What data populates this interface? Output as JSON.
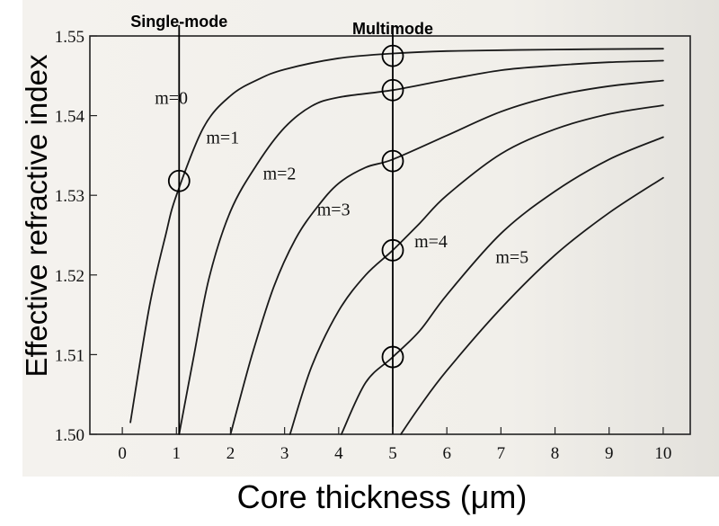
{
  "chart_data": {
    "type": "line",
    "xlabel": "Core thickness (μm)",
    "ylabel": "Effective refractive index",
    "xlim": [
      -0.6,
      10.5
    ],
    "ylim": [
      1.5,
      1.55
    ],
    "x_ticks": [
      "0",
      "1",
      "2",
      "3",
      "4",
      "5",
      "6",
      "7",
      "8",
      "9",
      "10"
    ],
    "y_ticks": [
      "1.50",
      "1.51",
      "1.52",
      "1.53",
      "1.54",
      "1.55"
    ],
    "grid": false,
    "series": [
      {
        "name": "m=0",
        "points": [
          [
            0.15,
            1.5015
          ],
          [
            0.5,
            1.516
          ],
          [
            0.8,
            1.525
          ],
          [
            1.0,
            1.53
          ],
          [
            1.5,
            1.5385
          ],
          [
            2.0,
            1.5425
          ],
          [
            2.5,
            1.5445
          ],
          [
            3.0,
            1.5458
          ],
          [
            4.0,
            1.5472
          ],
          [
            5.0,
            1.5478
          ],
          [
            6.0,
            1.5481
          ],
          [
            8.0,
            1.5483
          ],
          [
            10.0,
            1.5484
          ]
        ]
      },
      {
        "name": "m=1",
        "points": [
          [
            1.05,
            1.5
          ],
          [
            1.3,
            1.509
          ],
          [
            1.6,
            1.5195
          ],
          [
            2.0,
            1.528
          ],
          [
            2.5,
            1.534
          ],
          [
            3.0,
            1.5385
          ],
          [
            3.5,
            1.5412
          ],
          [
            4.0,
            1.5423
          ],
          [
            5.0,
            1.5432
          ],
          [
            6.0,
            1.5445
          ],
          [
            7.0,
            1.5457
          ],
          [
            8.0,
            1.5463
          ],
          [
            9.0,
            1.5467
          ],
          [
            10.0,
            1.5469
          ]
        ]
      },
      {
        "name": "m=2",
        "points": [
          [
            2.0,
            1.5
          ],
          [
            2.4,
            1.51
          ],
          [
            2.8,
            1.5185
          ],
          [
            3.2,
            1.5245
          ],
          [
            3.6,
            1.5285
          ],
          [
            4.0,
            1.5315
          ],
          [
            4.5,
            1.5335
          ],
          [
            5.0,
            1.5345
          ],
          [
            6.0,
            1.5375
          ],
          [
            7.0,
            1.5405
          ],
          [
            8.0,
            1.5425
          ],
          [
            9.0,
            1.5437
          ],
          [
            10.0,
            1.5444
          ]
        ]
      },
      {
        "name": "m=3",
        "points": [
          [
            3.1,
            1.5
          ],
          [
            3.5,
            1.5085
          ],
          [
            4.0,
            1.5155
          ],
          [
            4.5,
            1.52
          ],
          [
            5.0,
            1.5231
          ],
          [
            5.5,
            1.5265
          ],
          [
            6.0,
            1.53
          ],
          [
            7.0,
            1.5352
          ],
          [
            8.0,
            1.5383
          ],
          [
            9.0,
            1.5402
          ],
          [
            10.0,
            1.5413
          ]
        ]
      },
      {
        "name": "m=4",
        "points": [
          [
            4.05,
            1.5
          ],
          [
            4.5,
            1.5065
          ],
          [
            5.0,
            1.5097
          ],
          [
            5.5,
            1.513
          ],
          [
            6.0,
            1.5175
          ],
          [
            7.0,
            1.5252
          ],
          [
            8.0,
            1.5305
          ],
          [
            9.0,
            1.5345
          ],
          [
            10.0,
            1.5373
          ]
        ]
      },
      {
        "name": "m=5",
        "points": [
          [
            5.15,
            1.5
          ],
          [
            5.5,
            1.5035
          ],
          [
            6.0,
            1.508
          ],
          [
            7.0,
            1.5158
          ],
          [
            8.0,
            1.5225
          ],
          [
            9.0,
            1.5278
          ],
          [
            10.0,
            1.5322
          ]
        ]
      }
    ],
    "curve_labels": [
      {
        "text": "m=0",
        "x": 0.6,
        "y": 1.5415
      },
      {
        "text": "m=1",
        "x": 1.55,
        "y": 1.5365
      },
      {
        "text": "m=2",
        "x": 2.6,
        "y": 1.532
      },
      {
        "text": "m=3",
        "x": 3.6,
        "y": 1.5275
      },
      {
        "text": "m=4",
        "x": 5.4,
        "y": 1.5235
      },
      {
        "text": "m=5",
        "x": 6.9,
        "y": 1.5215
      }
    ],
    "vertical_lines": [
      {
        "x": 1.05,
        "label": "Single-mode"
      },
      {
        "x": 5.0,
        "label": "Multimode"
      }
    ],
    "markers": [
      {
        "x": 1.05,
        "y": 1.5318
      },
      {
        "x": 5.0,
        "y": 1.5475
      },
      {
        "x": 5.0,
        "y": 1.5432
      },
      {
        "x": 5.0,
        "y": 1.5343
      },
      {
        "x": 5.0,
        "y": 1.5231
      },
      {
        "x": 5.0,
        "y": 1.5097
      }
    ],
    "line_color": "#1a1a1a",
    "frame_color": "#222222"
  }
}
